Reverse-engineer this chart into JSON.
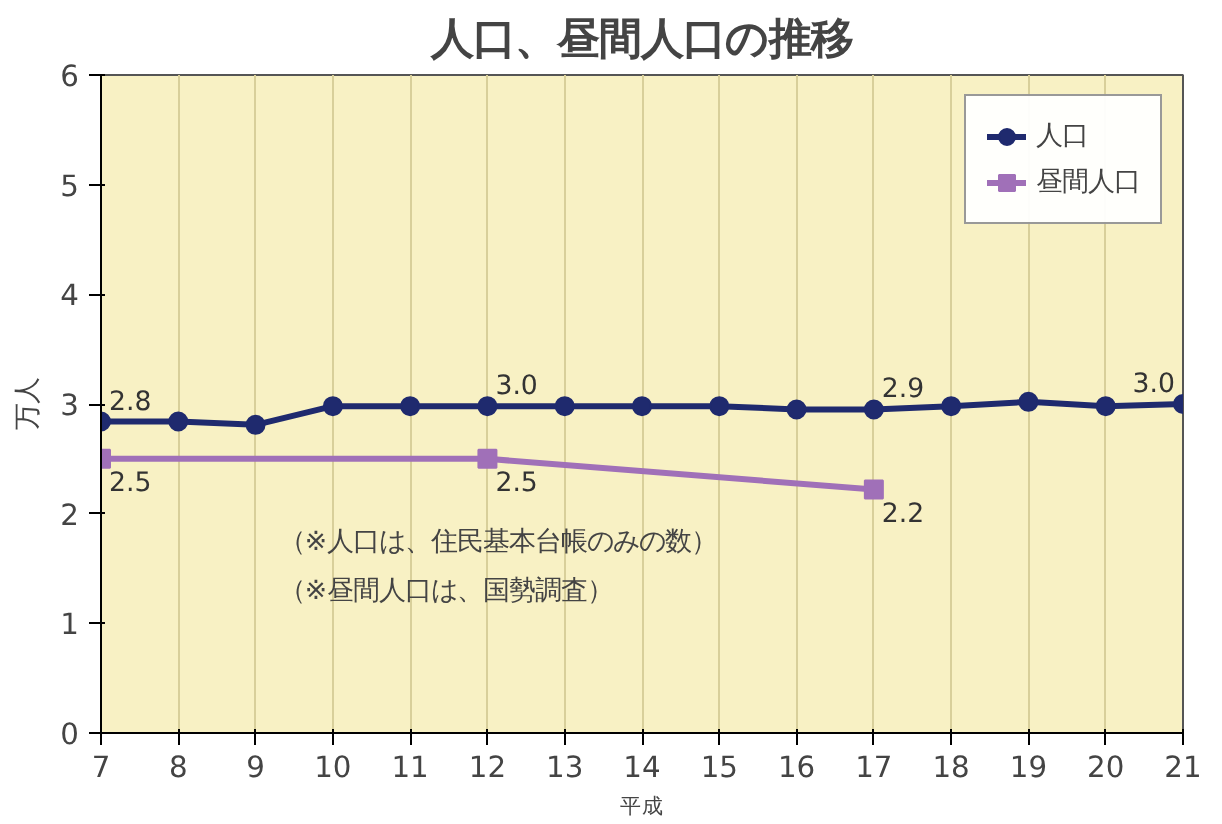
{
  "chart_data": {
    "type": "line",
    "title": "人口、昼間人口の推移",
    "xlabel": "平成",
    "ylabel": "万人",
    "x": [
      7,
      8,
      9,
      10,
      11,
      12,
      13,
      14,
      15,
      16,
      17,
      18,
      19,
      20,
      21
    ],
    "series": [
      {
        "name": "人口",
        "color": "#1f2a6e",
        "marker": "circle",
        "values": [
          2.84,
          2.84,
          2.81,
          2.98,
          2.98,
          2.98,
          2.98,
          2.98,
          2.98,
          2.95,
          2.95,
          2.98,
          3.02,
          2.98,
          3.0
        ],
        "value_labels": [
          "2.8",
          null,
          null,
          null,
          null,
          "3.0",
          null,
          null,
          null,
          null,
          "2.9",
          null,
          null,
          null,
          "3.0"
        ]
      },
      {
        "name": "昼間人口",
        "color": "#a070b8",
        "marker": "square",
        "x": [
          7,
          12,
          17
        ],
        "values": [
          2.5,
          2.5,
          2.22
        ],
        "value_labels": [
          "2.5",
          "2.5",
          "2.2"
        ]
      }
    ],
    "xlim": [
      7,
      21
    ],
    "xticks": [
      7,
      8,
      9,
      10,
      11,
      12,
      13,
      14,
      15,
      16,
      17,
      18,
      19,
      20,
      21
    ],
    "ylim": [
      0,
      6
    ],
    "yticks": [
      0,
      1,
      2,
      3,
      4,
      5,
      6
    ],
    "grid": "x",
    "legend": "top right",
    "line_style": "solid",
    "annotations": [
      "（※人口は、住民基本台帳のみの数）",
      "（※昼間人口は、国勢調査）"
    ]
  }
}
